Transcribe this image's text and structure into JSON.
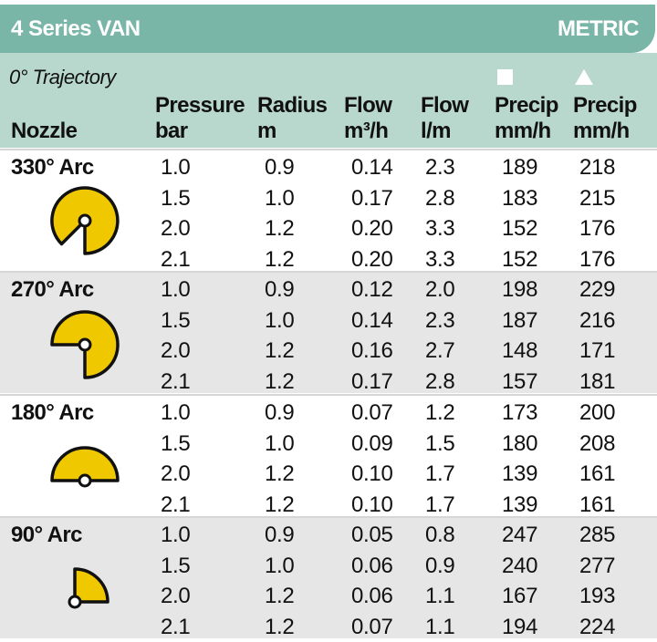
{
  "title": "4 Series VAN",
  "units": "METRIC",
  "trajectory": "0° Trajectory",
  "colors": {
    "header": "#7ab6a7",
    "subheader": "#b9d8cd",
    "nozzle_fill": "#f0c800",
    "alt_row": "#e6e6e6"
  },
  "columns": {
    "nozzle": "Nozzle",
    "pressure": [
      "Pressure",
      "bar"
    ],
    "radius": [
      "Radius",
      "m"
    ],
    "flow_m3h": [
      "Flow",
      "m³/h"
    ],
    "flow_lm": [
      "Flow",
      "l/m"
    ],
    "precip_square": [
      "Precip",
      "mm/h"
    ],
    "precip_triangle": [
      "Precip",
      "mm/h"
    ]
  },
  "precip_icons": [
    "square-spacing-icon",
    "triangle-spacing-icon"
  ],
  "groups": [
    {
      "label": "330° Arc",
      "icon": "330-arc-icon",
      "rows": [
        [
          "1.0",
          "0.9",
          "0.14",
          "2.3",
          "189",
          "218"
        ],
        [
          "1.5",
          "1.0",
          "0.17",
          "2.8",
          "183",
          "215"
        ],
        [
          "2.0",
          "1.2",
          "0.20",
          "3.3",
          "152",
          "176"
        ],
        [
          "2.1",
          "1.2",
          "0.20",
          "3.3",
          "152",
          "176"
        ]
      ]
    },
    {
      "label": "270° Arc",
      "icon": "270-arc-icon",
      "rows": [
        [
          "1.0",
          "0.9",
          "0.12",
          "2.0",
          "198",
          "229"
        ],
        [
          "1.5",
          "1.0",
          "0.14",
          "2.3",
          "187",
          "216"
        ],
        [
          "2.0",
          "1.2",
          "0.16",
          "2.7",
          "148",
          "171"
        ],
        [
          "2.1",
          "1.2",
          "0.17",
          "2.8",
          "157",
          "181"
        ]
      ]
    },
    {
      "label": "180° Arc",
      "icon": "180-arc-icon",
      "rows": [
        [
          "1.0",
          "0.9",
          "0.07",
          "1.2",
          "173",
          "200"
        ],
        [
          "1.5",
          "1.0",
          "0.09",
          "1.5",
          "180",
          "208"
        ],
        [
          "2.0",
          "1.2",
          "0.10",
          "1.7",
          "139",
          "161"
        ],
        [
          "2.1",
          "1.2",
          "0.10",
          "1.7",
          "139",
          "161"
        ]
      ]
    },
    {
      "label": "90° Arc",
      "icon": "90-arc-icon",
      "rows": [
        [
          "1.0",
          "0.9",
          "0.05",
          "0.8",
          "247",
          "285"
        ],
        [
          "1.5",
          "1.0",
          "0.06",
          "0.9",
          "240",
          "277"
        ],
        [
          "2.0",
          "1.2",
          "0.06",
          "1.1",
          "167",
          "193"
        ],
        [
          "2.1",
          "1.2",
          "0.07",
          "1.1",
          "194",
          "224"
        ]
      ]
    }
  ]
}
